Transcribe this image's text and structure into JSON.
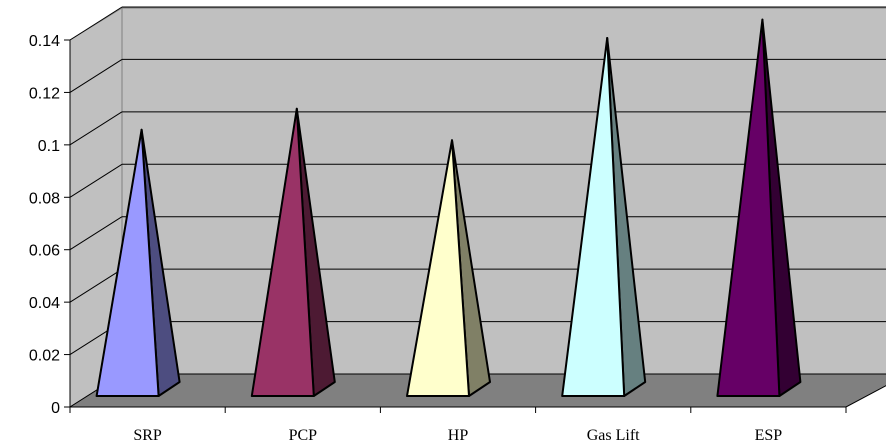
{
  "chart_data": {
    "type": "bar",
    "style": "3d-pyramid",
    "categories": [
      "SRP",
      "PCP",
      "HP",
      "Gas Lift",
      "ESP"
    ],
    "values": [
      0.097,
      0.105,
      0.093,
      0.132,
      0.139
    ],
    "colors": [
      "#9999FF",
      "#993366",
      "#FFFFCC",
      "#CCFFFF",
      "#660066"
    ],
    "y_ticks": [
      "0",
      "0.02",
      "0.04",
      "0.06",
      "0.08",
      "0.1",
      "0.12",
      "0.14"
    ],
    "ylim": [
      0,
      0.14
    ],
    "grid": true,
    "legend": "none",
    "title": "",
    "xlabel": "",
    "ylabel": ""
  }
}
